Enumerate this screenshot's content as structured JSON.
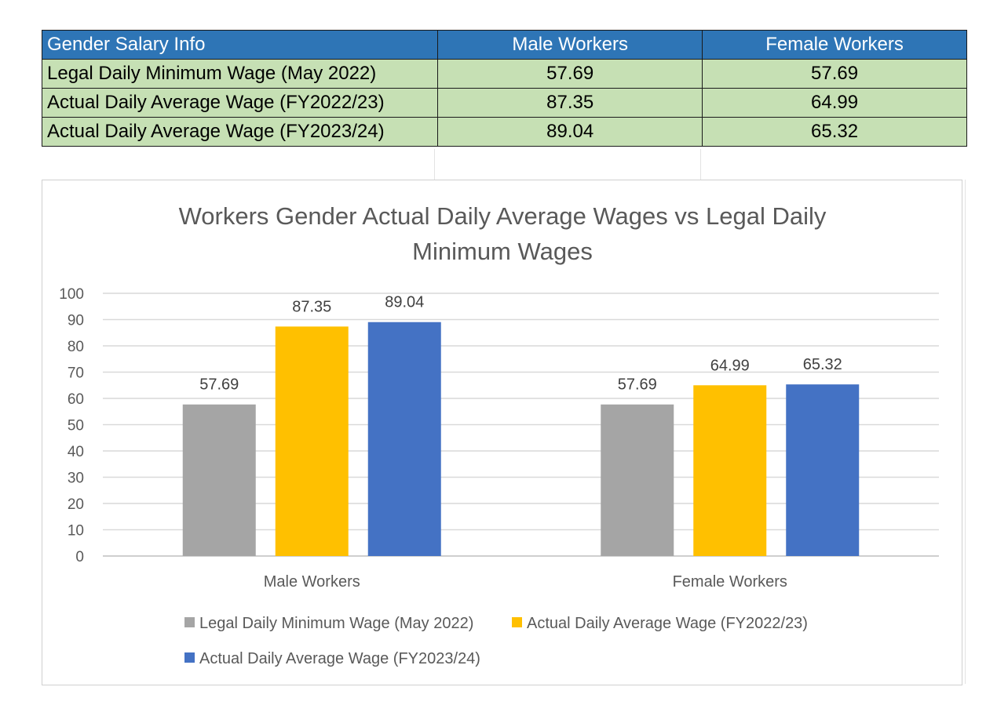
{
  "table": {
    "header": [
      "Gender Salary Info",
      "Male Workers",
      "Female Workers"
    ],
    "rows": [
      {
        "label": "Legal Daily Minimum Wage (May 2022)",
        "male": "57.69",
        "female": "57.69"
      },
      {
        "label": "Actual Daily Average Wage (FY2022/23)",
        "male": "87.35",
        "female": "64.99"
      },
      {
        "label": "Actual Daily Average Wage (FY2023/24)",
        "male": "89.04",
        "female": "65.32"
      }
    ]
  },
  "chart_data": {
    "type": "bar",
    "title": "Workers Gender Actual Daily Average Wages vs Legal Daily Minimum Wages",
    "title_lines": [
      "Workers Gender Actual Daily Average Wages vs Legal Daily",
      "Minimum Wages"
    ],
    "categories": [
      "Male Workers",
      "Female Workers"
    ],
    "series": [
      {
        "name": "Legal Daily Minimum Wage (May 2022)",
        "values": [
          57.69,
          57.69
        ],
        "color": "#a5a5a5"
      },
      {
        "name": "Actual Daily Average Wage (FY2022/23)",
        "values": [
          87.35,
          64.99
        ],
        "color": "#ffc000"
      },
      {
        "name": "Actual Daily Average Wage (FY2023/24)",
        "values": [
          89.04,
          65.32
        ],
        "color": "#4472c4"
      }
    ],
    "ylim": [
      0,
      100
    ],
    "yticks": [
      0,
      10,
      20,
      30,
      40,
      50,
      60,
      70,
      80,
      90,
      100
    ],
    "xlabel": "",
    "ylabel": "",
    "grid": true,
    "data_labels": true,
    "legend_position": "bottom"
  }
}
